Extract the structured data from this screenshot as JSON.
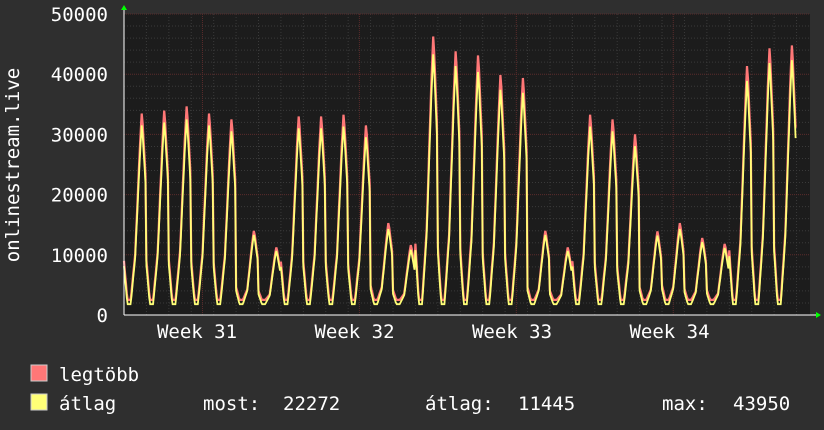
{
  "chart_data": {
    "type": "area",
    "ylabel": "onlinestream.live",
    "ylim": [
      0,
      50000
    ],
    "y_ticks": [
      0,
      10000,
      20000,
      30000,
      40000,
      50000
    ],
    "x_ticks": [
      "Week 31",
      "Week 32",
      "Week 33",
      "Week 34"
    ],
    "grid": true,
    "x_period": "4 weeks, hourly-ish samples (daily peaks)",
    "daily_peaks": {
      "legtobb": [
        34000,
        34500,
        35200,
        34000,
        33000,
        14200,
        11400,
        33500,
        33500,
        33800,
        32000,
        15500,
        11800,
        47000,
        44500,
        43800,
        40500,
        40000,
        14200,
        11400,
        33800,
        33000,
        30500,
        14100,
        15500,
        13000,
        12000,
        42000,
        45000,
        45500
      ],
      "atlag": [
        32000,
        32500,
        33000,
        32000,
        31000,
        13500,
        10800,
        31500,
        31500,
        31800,
        30000,
        14500,
        11000,
        44000,
        42000,
        41000,
        38000,
        37500,
        13500,
        10800,
        31800,
        31000,
        28500,
        13400,
        14500,
        12300,
        11300,
        39500,
        42500,
        43000
      ]
    },
    "series": [
      {
        "name": "legtöbb",
        "color": "#ff7777"
      },
      {
        "name": "átlag",
        "color": "#ffff77"
      }
    ],
    "legend": {
      "items": [
        "legtöbb",
        "átlag"
      ],
      "stats": {
        "most_label": "most:",
        "most_value": "22272",
        "atlag_label": "átlag:",
        "atlag_value": "11445",
        "max_label": "max:",
        "max_value": "43950"
      }
    },
    "colors": {
      "background": "#2f2f2f",
      "plot_bg": "#1c1c1c",
      "grid_major": "#5a2b2b",
      "grid_minor": "#3a3a3a",
      "axis": "#ffffff",
      "arrow": "#00ff00"
    }
  }
}
